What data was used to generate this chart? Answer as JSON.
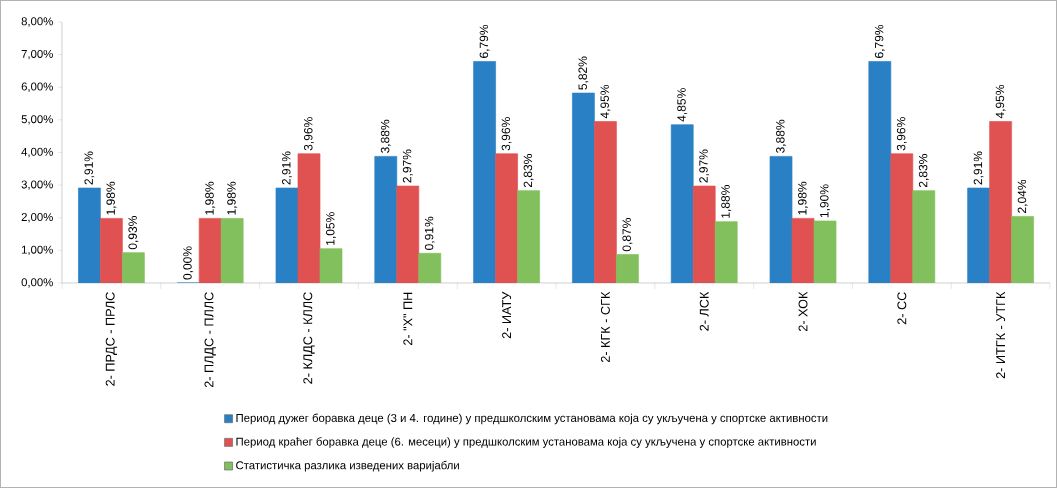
{
  "chart_data": {
    "type": "bar",
    "categories": [
      "2- ПРДС - ПРЛС",
      "2- ПЛДС - ПЛЛС",
      "2- КЛДС - КЛЛС",
      "2- \"X\" ПН",
      "2- ИАТУ",
      "2- КГК - СГК",
      "2- ЛСК",
      "2- ХОК",
      "2- СС",
      "2- ИТГК - УТГК"
    ],
    "series": [
      {
        "name": "Период дужег боравка деце (3 и 4. године) у предшколским установама која су укључена у спортске активности",
        "color": "#2a80c4",
        "values": [
          2.91,
          0.0,
          2.91,
          3.88,
          6.79,
          5.82,
          4.85,
          3.88,
          6.79,
          2.91
        ],
        "value_labels": [
          "2,91%",
          "0,00%",
          "2,91%",
          "3,88%",
          "6,79%",
          "5,82%",
          "4,85%",
          "3,88%",
          "6,79%",
          "2,91%"
        ]
      },
      {
        "name": "Период краћег боравка деце (6. месеци) у предшколским установама која су укључена у спортске активности",
        "color": "#e05252",
        "values": [
          1.98,
          1.98,
          3.96,
          2.97,
          3.96,
          4.95,
          2.97,
          1.98,
          3.96,
          4.95
        ],
        "value_labels": [
          "1,98%",
          "1,98%",
          "3,96%",
          "2,97%",
          "3,96%",
          "4,95%",
          "2,97%",
          "1,98%",
          "3,96%",
          "4,95%"
        ]
      },
      {
        "name": "Статистичка разлика изведених варијабли",
        "color": "#82c05e",
        "values": [
          0.93,
          1.98,
          1.05,
          0.91,
          2.83,
          0.87,
          1.88,
          1.9,
          2.83,
          2.04
        ],
        "value_labels": [
          "0,93%",
          "1,98%",
          "1,05%",
          "0,91%",
          "2,83%",
          "0,87%",
          "1,88%",
          "1,90%",
          "2,83%",
          "2,04%"
        ]
      }
    ],
    "ylim": [
      0,
      8
    ],
    "yticks": [
      {
        "value": 0,
        "label": "0,00%"
      },
      {
        "value": 1,
        "label": "1,00%"
      },
      {
        "value": 2,
        "label": "2,00%"
      },
      {
        "value": 3,
        "label": "3,00%"
      },
      {
        "value": 4,
        "label": "4,00%"
      },
      {
        "value": 5,
        "label": "5,00%"
      },
      {
        "value": 6,
        "label": "6,00%"
      },
      {
        "value": 7,
        "label": "7,00%"
      },
      {
        "value": 8,
        "label": "8,00%"
      }
    ],
    "grid": false,
    "legend": "bottom"
  }
}
